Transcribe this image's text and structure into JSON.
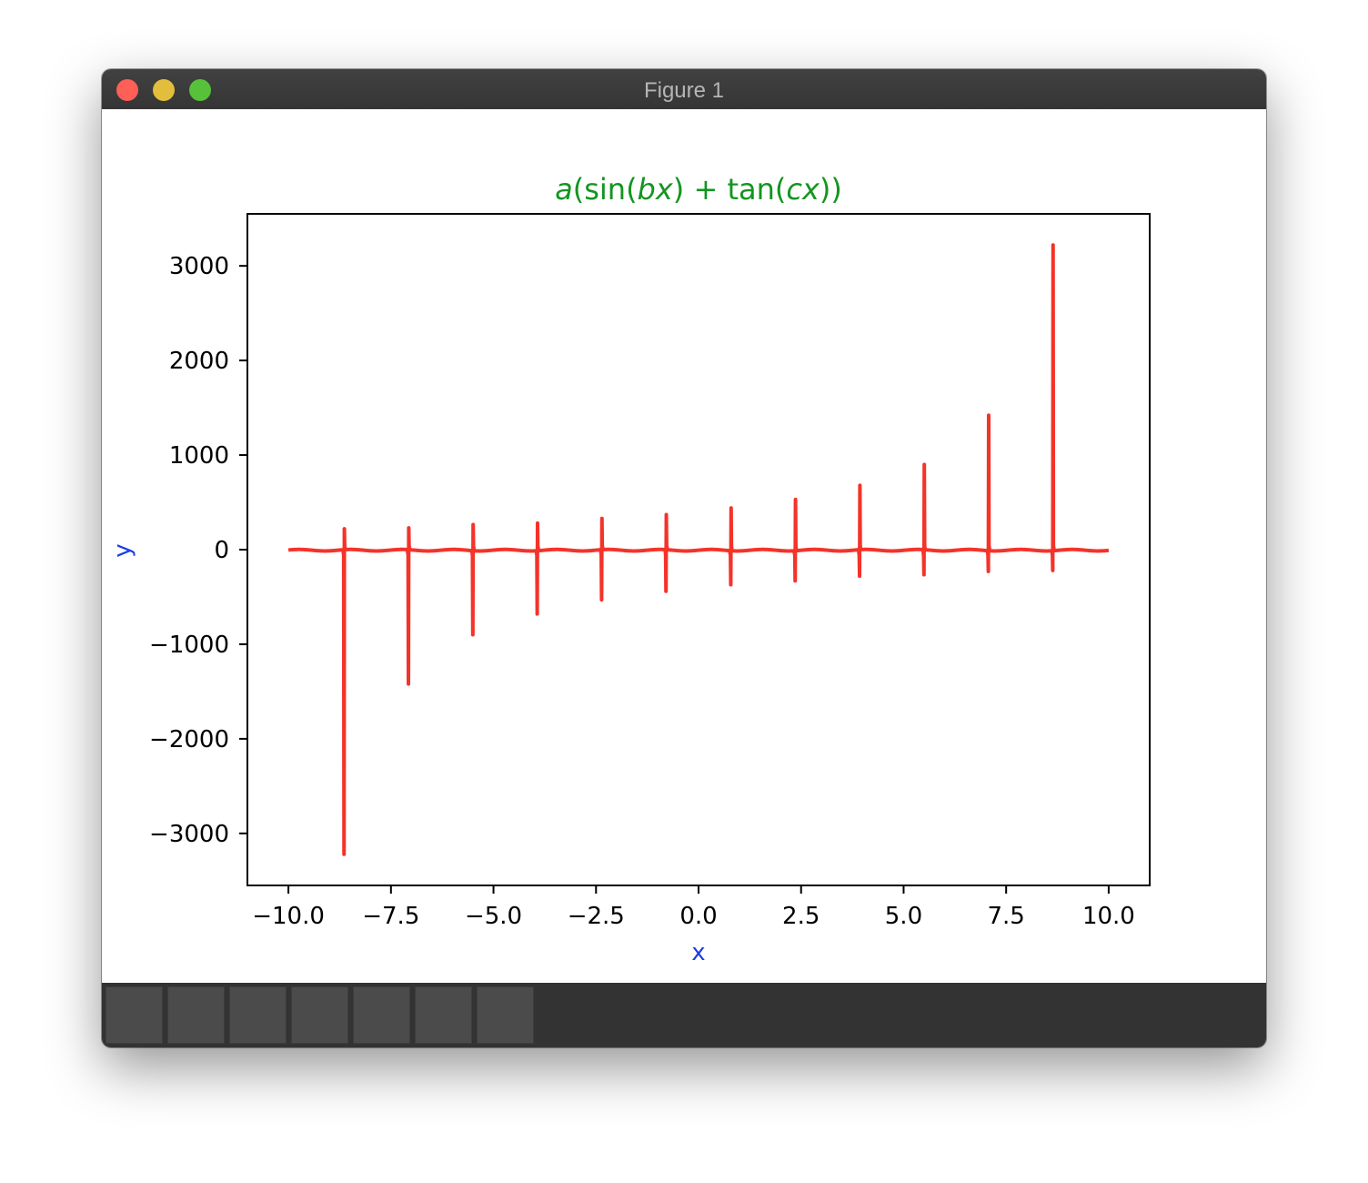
{
  "window": {
    "title": "Figure 1"
  },
  "toolbar": {
    "buttons": [
      "home-button",
      "back-button",
      "forward-button",
      "pan-button",
      "zoom-button",
      "configure-subplots-button",
      "save-button"
    ]
  },
  "colors": {
    "line": "#f43329",
    "title": "#13951f",
    "axis_label": "#1a3ee8"
  },
  "chart_data": {
    "type": "line",
    "title_parts": [
      {
        "t": "a",
        "italic": true
      },
      {
        "t": "(sin(",
        "italic": false
      },
      {
        "t": "bx",
        "italic": true
      },
      {
        "t": ") + tan(",
        "italic": false
      },
      {
        "t": "cx",
        "italic": true
      },
      {
        "t": "))",
        "italic": false
      }
    ],
    "xlabel": "x",
    "ylabel": "y",
    "xlim": [
      -11,
      11
    ],
    "ylim": [
      -3550,
      3550
    ],
    "xticks": [
      {
        "v": -10,
        "label": "−10.0"
      },
      {
        "v": -7.5,
        "label": "−7.5"
      },
      {
        "v": -5,
        "label": "−5.0"
      },
      {
        "v": -2.5,
        "label": "−2.5"
      },
      {
        "v": 0,
        "label": "0.0"
      },
      {
        "v": 2.5,
        "label": "2.5"
      },
      {
        "v": 5,
        "label": "5.0"
      },
      {
        "v": 7.5,
        "label": "7.5"
      },
      {
        "v": 10,
        "label": "10.0"
      }
    ],
    "yticks": [
      {
        "v": 3000,
        "label": "3000"
      },
      {
        "v": 2000,
        "label": "2000"
      },
      {
        "v": 1000,
        "label": "1000"
      },
      {
        "v": 0,
        "label": "0"
      },
      {
        "v": -1000,
        "label": "−1000"
      },
      {
        "v": -2000,
        "label": "−2000"
      },
      {
        "v": -3000,
        "label": "−3000"
      }
    ],
    "x_range": [
      -10,
      10
    ],
    "spikes": [
      {
        "x": -8.64,
        "up": 220,
        "down": -3220
      },
      {
        "x": -7.07,
        "up": 230,
        "down": -1420
      },
      {
        "x": -5.5,
        "up": 265,
        "down": -900
      },
      {
        "x": -3.93,
        "up": 280,
        "down": -680
      },
      {
        "x": -2.36,
        "up": 330,
        "down": -530
      },
      {
        "x": -0.79,
        "up": 370,
        "down": -440
      },
      {
        "x": 0.79,
        "up": 440,
        "down": -370
      },
      {
        "x": 2.36,
        "up": 530,
        "down": -330
      },
      {
        "x": 3.93,
        "up": 680,
        "down": -280
      },
      {
        "x": 5.5,
        "up": 900,
        "down": -265
      },
      {
        "x": 7.07,
        "up": 1420,
        "down": -230
      },
      {
        "x": 8.64,
        "up": 3220,
        "down": -220
      }
    ]
  }
}
